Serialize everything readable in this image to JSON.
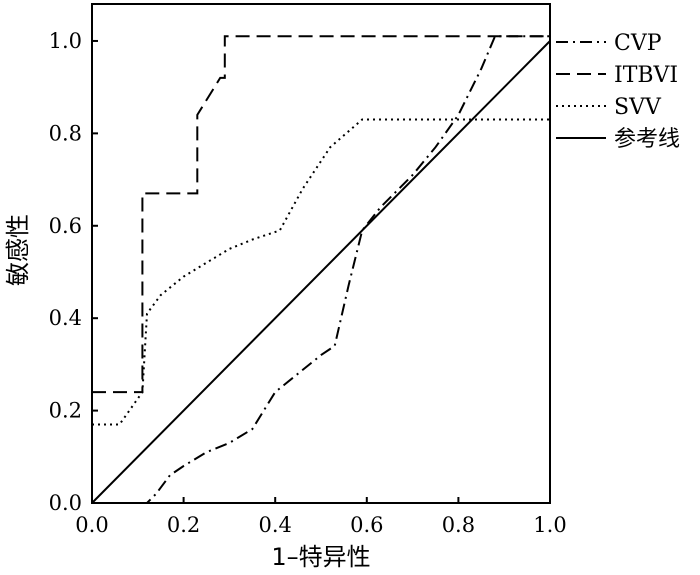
{
  "chart_data": {
    "type": "line",
    "title": "",
    "xlabel": "1–特异性",
    "ylabel": "敏感性",
    "xlim": [
      0,
      1
    ],
    "ylim": [
      0,
      1.08
    ],
    "xticks": [
      "0.0",
      "0.2",
      "0.4",
      "0.6",
      "0.8",
      "1.0"
    ],
    "yticks": [
      "0.0",
      "0.2",
      "0.4",
      "0.6",
      "0.8",
      "1.0"
    ],
    "grid": false,
    "legend_position": "outside-right-top",
    "series": [
      {
        "name": "CVP",
        "style": "dashdot",
        "x": [
          0,
          0.12,
          0.14,
          0.17,
          0.2,
          0.25,
          0.3,
          0.35,
          0.4,
          0.45,
          0.5,
          0.53,
          0.56,
          0.59,
          0.63,
          0.7,
          0.75,
          0.8,
          0.85,
          0.88,
          0.9,
          1.0
        ],
        "y": [
          0,
          0,
          0.02,
          0.06,
          0.08,
          0.11,
          0.13,
          0.16,
          0.24,
          0.28,
          0.32,
          0.34,
          0.47,
          0.59,
          0.64,
          0.71,
          0.77,
          0.84,
          0.94,
          1.01,
          1.01,
          1.01
        ]
      },
      {
        "name": "ITBVI",
        "style": "dashed",
        "x": [
          0,
          0.1,
          0.11,
          0.11,
          0.23,
          0.23,
          0.28,
          0.28,
          0.29,
          0.29,
          1.0
        ],
        "y": [
          0.24,
          0.24,
          0.24,
          0.67,
          0.67,
          0.84,
          0.92,
          0.92,
          0.92,
          1.01,
          1.01
        ]
      },
      {
        "name": "SVV",
        "style": "dotted",
        "x": [
          0,
          0.06,
          0.11,
          0.12,
          0.15,
          0.2,
          0.25,
          0.3,
          0.35,
          0.41,
          0.46,
          0.52,
          0.59,
          0.7,
          0.8,
          0.9,
          1.0
        ],
        "y": [
          0.17,
          0.17,
          0.24,
          0.41,
          0.45,
          0.49,
          0.52,
          0.55,
          0.57,
          0.59,
          0.68,
          0.77,
          0.83,
          0.83,
          0.83,
          0.83,
          0.83
        ]
      },
      {
        "name": "参考线",
        "style": "solid",
        "x": [
          0,
          1
        ],
        "y": [
          0,
          1
        ]
      }
    ]
  }
}
